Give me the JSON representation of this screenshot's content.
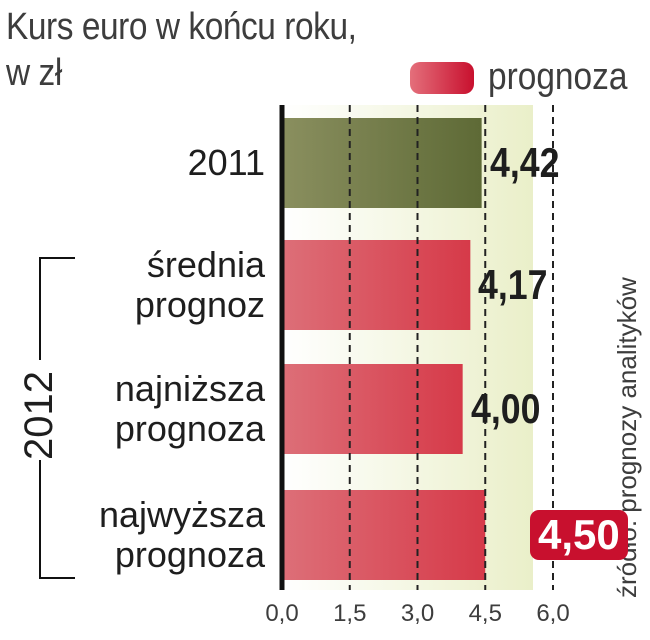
{
  "title": [
    "Kurs euro w końcu roku,",
    "w zł"
  ],
  "legend": {
    "label": "prognoza",
    "color": "#c8102e"
  },
  "source": "źródło: prognozy analityków",
  "group_label": "2012",
  "colors": {
    "actual": "#5e6a36",
    "forecast": "#d63a49",
    "background_band": "#eaefc9",
    "badge": "#c8102e"
  },
  "chart_data": {
    "type": "bar",
    "orientation": "horizontal",
    "categories": [
      "2011",
      "średnia\nprognoz",
      "najniższa\nprognoza",
      "najwyższa\nprognoza"
    ],
    "values": [
      4.42,
      4.17,
      4.0,
      4.5
    ],
    "value_labels": [
      "4,42",
      "4,17",
      "4,00",
      "4,50"
    ],
    "is_forecast": [
      false,
      true,
      true,
      true
    ],
    "xlim": [
      0,
      6.0
    ],
    "xticks": [
      0,
      1.5,
      3.0,
      4.5,
      6.0
    ],
    "xtick_labels": [
      "0,0",
      "1,5",
      "3,0",
      "4,5",
      "6,0"
    ],
    "grid": true,
    "legend_position": "top-right",
    "title": "Kurs euro w końcu roku, w zł"
  }
}
